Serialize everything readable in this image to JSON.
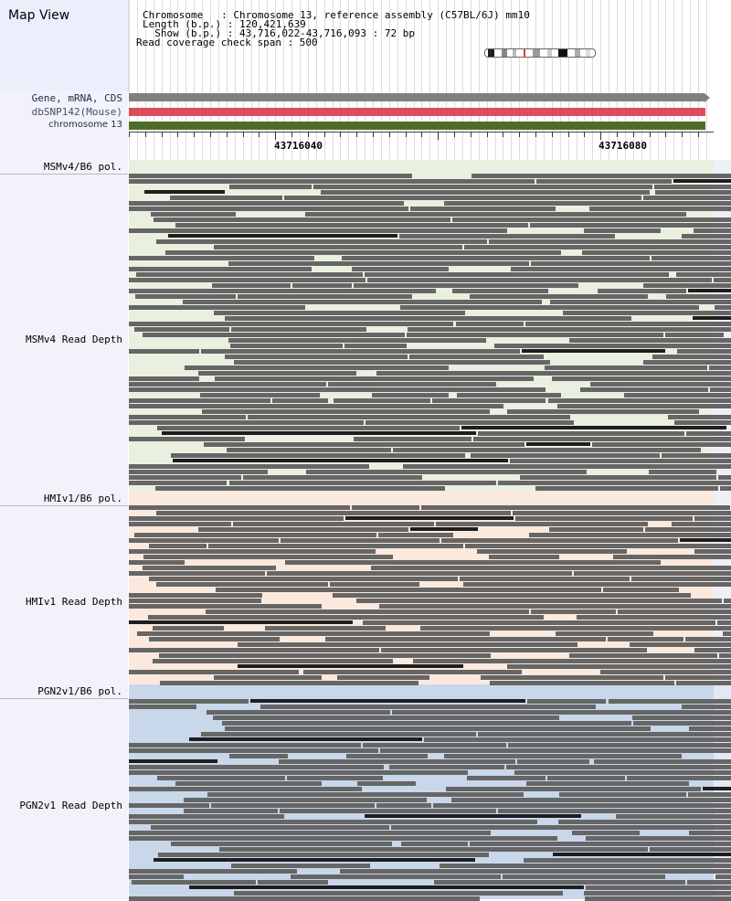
{
  "header": {
    "title": "Map View",
    "info_lines": [
      "Chromosome   : Chromosome 13, reference assembly (C57BL/6J) mm10",
      "Length (b.p.) : 120,421,639",
      "  Show (b.p.) : 43,716,022-43,716,093 : 72 bp",
      "Read coverage check span : 500"
    ]
  },
  "tracks": [
    {
      "label": "Gene, mRNA, CDS",
      "color": "#808080"
    },
    {
      "label": "dbSNP142(Mouse)",
      "color": "#dc4e5e"
    },
    {
      "label": "chromosome 13",
      "color": "#4f6b2a"
    }
  ],
  "ruler": {
    "tick_labels": [
      "43716040",
      "43716080"
    ]
  },
  "sections": [
    {
      "pol_label": "MSMv4/B6 pol.",
      "depth_label": "MSMv4 Read Depth",
      "color": "#eaf0e0"
    },
    {
      "pol_label": "HMIv1/B6 pol.",
      "depth_label": "HMIv1 Read Depth",
      "color": "#fbe9dd"
    },
    {
      "pol_label": "PGN2v1/B6 pol.",
      "depth_label": "PGN2v1 Read Depth",
      "color": "#c9d7ea"
    }
  ],
  "colors": {
    "read": "#666666",
    "read_dark": "#1e1e1e",
    "panel": "#f2f2fb"
  },
  "icons": [
    "chromosome-ideogram-icon"
  ]
}
